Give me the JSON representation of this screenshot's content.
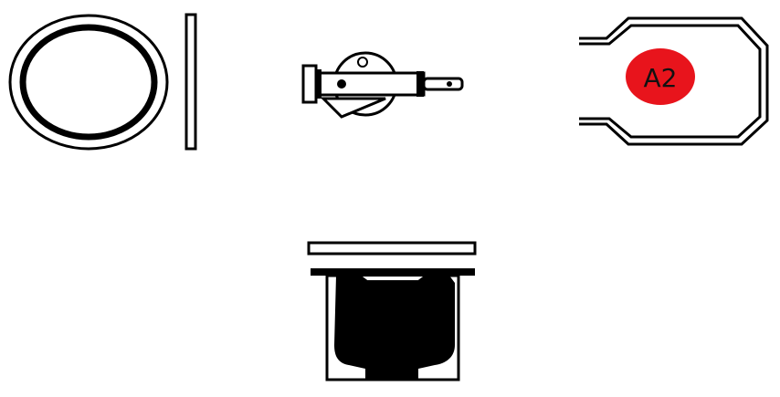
{
  "parts": [
    {
      "id": "gasket-ring",
      "kind": "o-ring with side profile"
    },
    {
      "id": "valve-assembly",
      "kind": "valve with pivot disc"
    },
    {
      "id": "spring-clip",
      "kind": "wire clip",
      "badge": {
        "label": "A2",
        "color": "#e8141c"
      }
    },
    {
      "id": "cup-insert",
      "kind": "cup with lid plate"
    }
  ],
  "colors": {
    "line": "#000000",
    "fill": "#ffffff",
    "badge": "#e8141c"
  }
}
